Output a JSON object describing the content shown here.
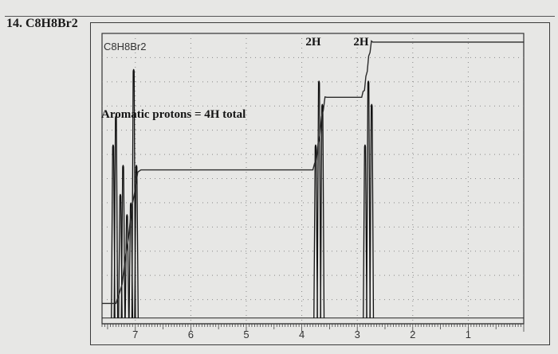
{
  "problem": {
    "title": "14. C8H8Br2"
  },
  "chart_data": {
    "type": "line",
    "title": "C8H8Br2",
    "xlabel": "",
    "ylabel": "",
    "xlim": [
      7.6,
      0.0
    ],
    "ylim": [
      0,
      1
    ],
    "grid": true,
    "x_ticks": [
      "7",
      "6",
      "5",
      "4",
      "3",
      "2",
      "1"
    ],
    "annotations": [
      {
        "text": "Aromatic protons = 4H total",
        "x": 6.5
      },
      {
        "text": "2H",
        "x": 3.65
      },
      {
        "text": "2H",
        "x": 2.8
      }
    ],
    "integration_steps": [
      {
        "from": 7.35,
        "to": 6.9,
        "integral_after": 0.53
      },
      {
        "from": 3.8,
        "to": 3.55,
        "integral_after": 0.78
      },
      {
        "from": 2.92,
        "to": 2.72,
        "integral_after": 0.97
      }
    ],
    "series": [
      {
        "peaks": [
          {
            "x": 7.4,
            "height": 0.62
          },
          {
            "x": 7.35,
            "height": 0.72
          },
          {
            "x": 7.27,
            "height": 0.45
          },
          {
            "x": 7.22,
            "height": 0.55
          },
          {
            "x": 7.15,
            "height": 0.38
          },
          {
            "x": 7.08,
            "height": 0.42
          },
          {
            "x": 7.03,
            "height": 0.88
          },
          {
            "x": 6.98,
            "height": 0.55
          },
          {
            "x": 3.75,
            "height": 0.62
          },
          {
            "x": 3.69,
            "height": 0.84
          },
          {
            "x": 3.63,
            "height": 0.76
          },
          {
            "x": 2.86,
            "height": 0.62
          },
          {
            "x": 2.8,
            "height": 0.84
          },
          {
            "x": 2.74,
            "height": 0.76
          }
        ]
      }
    ]
  }
}
